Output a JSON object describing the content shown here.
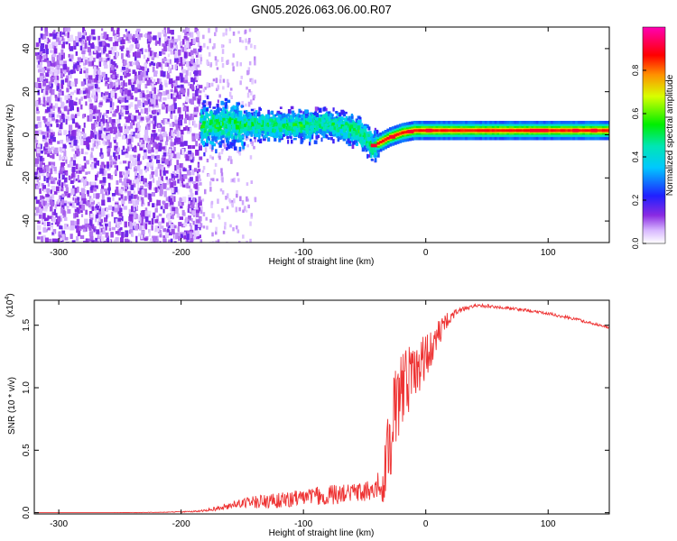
{
  "title": "GN05.2026.063.06.00.R07",
  "chart_data": [
    {
      "type": "heatmap",
      "title": "GN05.2026.063.06.00.R07",
      "xlabel": "Height of straight line (km)",
      "ylabel": "Frequency (Hz)",
      "xlim": [
        -320,
        150
      ],
      "ylim": [
        -50,
        50
      ],
      "xticks": [
        -300,
        -200,
        -100,
        0,
        100
      ],
      "xtick_labels": [
        "-300",
        "-200",
        "-100",
        "0",
        "100"
      ],
      "yticks": [
        -40,
        -20,
        0,
        20,
        40
      ],
      "ytick_labels": [
        "-40",
        "-20",
        "0",
        "20",
        "40"
      ],
      "colorbar": {
        "label": "Normalized spectral amplitude",
        "range": [
          0,
          1
        ],
        "ticks": [
          0.0,
          0.2,
          0.4,
          0.6,
          0.8
        ],
        "tick_labels": [
          "0.0",
          "0.2",
          "0.4",
          "0.6",
          "0.8"
        ],
        "colormap": "rainbow (white-violet-blue-cyan-green-yellow-red-magenta)"
      },
      "ridge": {
        "description": "dominant tone frequency vs height",
        "x": [
          -185,
          -160,
          -130,
          -100,
          -80,
          -65,
          -55,
          -48,
          -45,
          -40,
          -30,
          -20,
          -10,
          0,
          20,
          50,
          80,
          100,
          120,
          150
        ],
        "y": [
          5,
          6,
          5,
          5,
          6,
          4,
          2,
          -2,
          -5,
          -4,
          -1,
          1,
          2,
          2,
          2,
          2,
          2,
          2,
          2,
          2
        ]
      },
      "regions": [
        {
          "x_range": [
            -320,
            -185
          ],
          "description": "noise, scattered low amplitude"
        },
        {
          "x_range": [
            -185,
            -40
          ],
          "description": "broadband signal near 0 to 10 Hz"
        },
        {
          "x_range": [
            -40,
            150
          ],
          "description": "strong narrow tone near 2 Hz"
        }
      ]
    },
    {
      "type": "line",
      "xlabel": "Height of straight line (km)",
      "ylabel": "SNR (10 * v/v)",
      "y_scale_label": "(x10",
      "y_scale_exponent": "4",
      "xlim": [
        -320,
        150
      ],
      "ylim": [
        -0.01,
        1.7
      ],
      "xticks": [
        -300,
        -200,
        -100,
        0,
        100
      ],
      "xtick_labels": [
        "-300",
        "-200",
        "-100",
        "0",
        "100"
      ],
      "yticks": [
        0.0,
        0.5,
        1.0,
        1.5
      ],
      "ytick_labels": [
        "0.0",
        "0.5",
        "1.0",
        "1.5"
      ],
      "color": "#ee3333",
      "series": [
        {
          "name": "SNR",
          "x": [
            -320,
            -300,
            -260,
            -220,
            -190,
            -180,
            -170,
            -160,
            -140,
            -120,
            -100,
            -80,
            -60,
            -50,
            -40,
            -35,
            -30,
            -25,
            -20,
            -10,
            0,
            10,
            20,
            30,
            40,
            50,
            60,
            80,
            100,
            120,
            150
          ],
          "y": [
            0.0,
            0.0,
            0.0,
            0.002,
            0.008,
            0.015,
            0.03,
            0.05,
            0.07,
            0.08,
            0.1,
            0.12,
            0.13,
            0.14,
            0.15,
            0.2,
            0.45,
            0.7,
            0.9,
            1.05,
            1.2,
            1.4,
            1.55,
            1.62,
            1.65,
            1.65,
            1.64,
            1.62,
            1.59,
            1.55,
            1.48
          ],
          "noise_amplitude": [
            0.0,
            0.0,
            0.0,
            0.002,
            0.005,
            0.01,
            0.02,
            0.03,
            0.05,
            0.06,
            0.07,
            0.08,
            0.08,
            0.08,
            0.12,
            0.18,
            0.3,
            0.35,
            0.3,
            0.25,
            0.2,
            0.12,
            0.05,
            0.02,
            0.015,
            0.015,
            0.012,
            0.012,
            0.012,
            0.012,
            0.012
          ]
        }
      ]
    }
  ]
}
